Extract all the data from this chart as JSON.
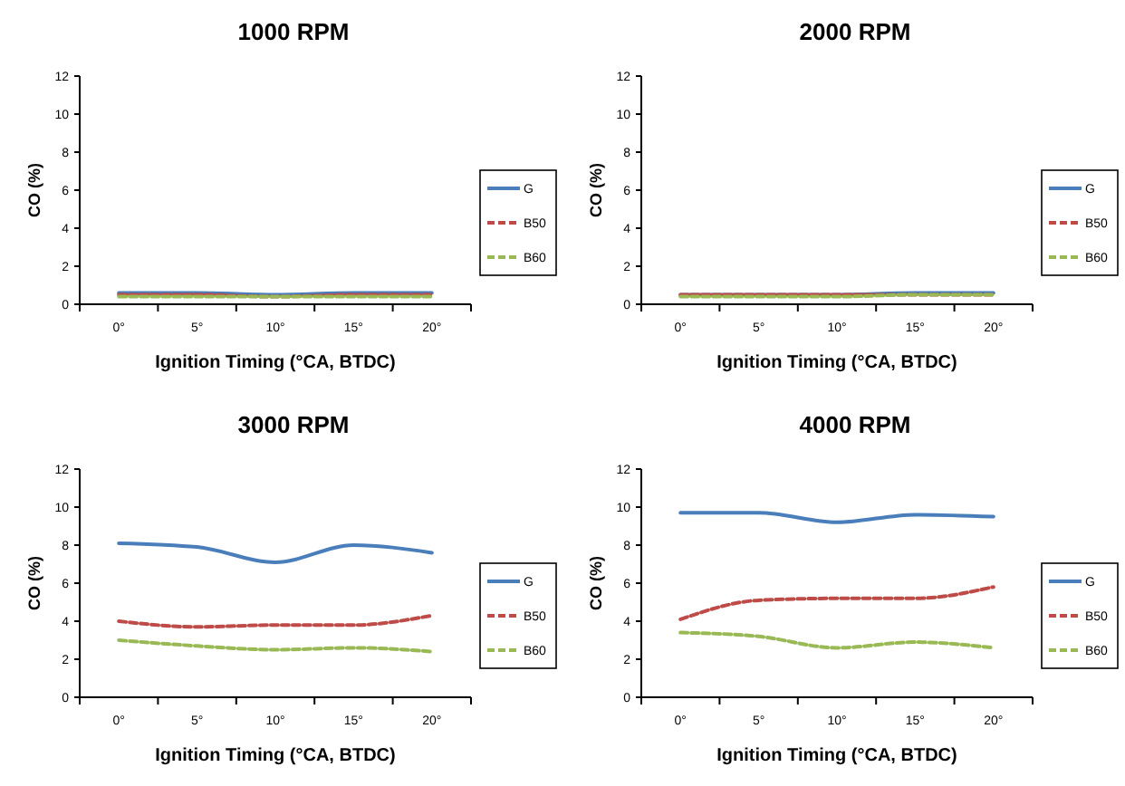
{
  "chart_data": [
    {
      "type": "line",
      "title": "1000 RPM",
      "xlabel": "Ignition Timing (°CA, BTDC)",
      "ylabel": "CO (%)",
      "categories": [
        "0°",
        "5°",
        "10°",
        "15°",
        "20°"
      ],
      "ylim": [
        0,
        12
      ],
      "yticks": [
        0,
        2,
        4,
        6,
        8,
        10,
        12
      ],
      "grid": false,
      "legend": "right",
      "series": [
        {
          "name": "G",
          "color": "#4a7ebb",
          "line_style": "solid",
          "values": [
            0.6,
            0.6,
            0.5,
            0.6,
            0.6
          ]
        },
        {
          "name": "B50",
          "color": "#be4b48",
          "line_style": "dashed",
          "values": [
            0.5,
            0.5,
            0.4,
            0.5,
            0.5
          ]
        },
        {
          "name": "B60",
          "color": "#98b954",
          "line_style": "dashed",
          "values": [
            0.4,
            0.4,
            0.4,
            0.4,
            0.4
          ]
        }
      ]
    },
    {
      "type": "line",
      "title": "2000 RPM",
      "xlabel": "Ignition Timing (°CA, BTDC)",
      "ylabel": "CO (%)",
      "categories": [
        "0°",
        "5°",
        "10°",
        "15°",
        "20°"
      ],
      "ylim": [
        0,
        12
      ],
      "yticks": [
        0,
        2,
        4,
        6,
        8,
        10,
        12
      ],
      "grid": false,
      "legend": "right",
      "series": [
        {
          "name": "G",
          "color": "#4a7ebb",
          "line_style": "solid",
          "values": [
            0.5,
            0.5,
            0.5,
            0.6,
            0.6
          ]
        },
        {
          "name": "B50",
          "color": "#be4b48",
          "line_style": "dashed",
          "values": [
            0.5,
            0.5,
            0.5,
            0.5,
            0.5
          ]
        },
        {
          "name": "B60",
          "color": "#98b954",
          "line_style": "dashed",
          "values": [
            0.4,
            0.4,
            0.4,
            0.5,
            0.5
          ]
        }
      ]
    },
    {
      "type": "line",
      "title": "3000 RPM",
      "xlabel": "Ignition Timing (°CA, BTDC)",
      "ylabel": "CO (%)",
      "categories": [
        "0°",
        "5°",
        "10°",
        "15°",
        "20°"
      ],
      "ylim": [
        0,
        12
      ],
      "yticks": [
        0,
        2,
        4,
        6,
        8,
        10,
        12
      ],
      "grid": false,
      "legend": "right",
      "series": [
        {
          "name": "G",
          "color": "#4a7ebb",
          "line_style": "solid",
          "values": [
            8.1,
            7.9,
            7.1,
            8.0,
            7.6
          ]
        },
        {
          "name": "B50",
          "color": "#be4b48",
          "line_style": "dashed",
          "values": [
            4.0,
            3.7,
            3.8,
            3.8,
            4.3
          ]
        },
        {
          "name": "B60",
          "color": "#98b954",
          "line_style": "dashed",
          "values": [
            3.0,
            2.7,
            2.5,
            2.6,
            2.4
          ]
        }
      ]
    },
    {
      "type": "line",
      "title": "4000 RPM",
      "xlabel": "Ignition Timing (°CA, BTDC)",
      "ylabel": "CO (%)",
      "categories": [
        "0°",
        "5°",
        "10°",
        "15°",
        "20°"
      ],
      "ylim": [
        0,
        12
      ],
      "yticks": [
        0,
        2,
        4,
        6,
        8,
        10,
        12
      ],
      "grid": false,
      "legend": "right",
      "series": [
        {
          "name": "G",
          "color": "#4a7ebb",
          "line_style": "solid",
          "values": [
            9.7,
            9.7,
            9.2,
            9.6,
            9.5
          ]
        },
        {
          "name": "B50",
          "color": "#be4b48",
          "line_style": "dashed",
          "values": [
            4.1,
            5.1,
            5.2,
            5.2,
            5.8
          ]
        },
        {
          "name": "B60",
          "color": "#98b954",
          "line_style": "dashed",
          "values": [
            3.4,
            3.2,
            2.6,
            2.9,
            2.6
          ]
        }
      ]
    }
  ]
}
